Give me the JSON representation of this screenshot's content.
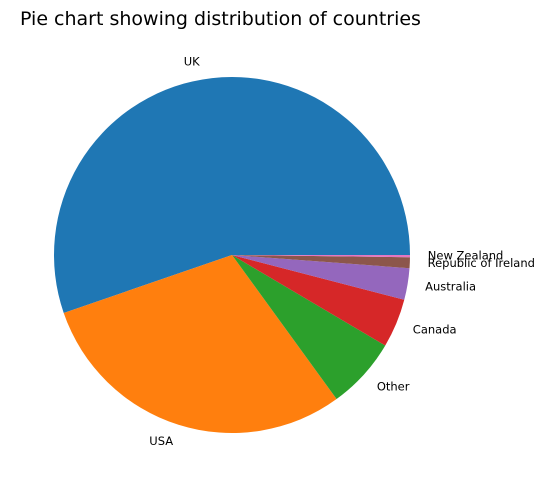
{
  "chart_data": {
    "type": "pie",
    "title": "Pie chart showing distribution of countries",
    "start_angle": "0 degrees (3 o'clock)",
    "direction": "counter-clockwise",
    "slices": [
      {
        "label": "UK",
        "value": 56.0,
        "color": "#1f77b4"
      },
      {
        "label": "USA",
        "value": 30.1,
        "color": "#ff7f0e"
      },
      {
        "label": "Other",
        "value": 6.6,
        "color": "#2ca02c"
      },
      {
        "label": "Canada",
        "value": 4.5,
        "color": "#d62728"
      },
      {
        "label": "Australia",
        "value": 2.9,
        "color": "#9467bd"
      },
      {
        "label": "Republic of Ireland",
        "value": 1.0,
        "color": "#8c564b"
      },
      {
        "label": "New Zealand",
        "value": 0.2,
        "color": "#e377c2"
      }
    ]
  }
}
